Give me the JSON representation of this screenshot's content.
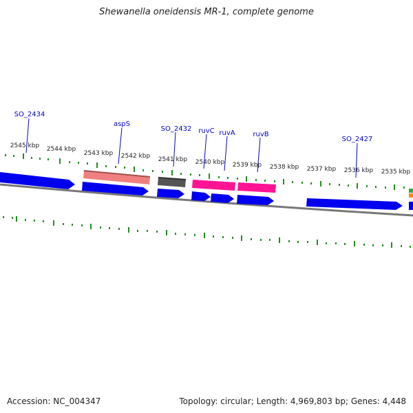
{
  "title": "Shewanella oneidensis MR-1, complete genome",
  "accession_label": "Accession:",
  "accession": "NC_004347",
  "topology_label": "Topology:",
  "topology": "circular",
  "length_label": "Length:",
  "length": "4,969,803 bp",
  "genes_label": "Genes:",
  "genes": "4,448",
  "ticks": [
    "2545 kbp",
    "2544 kbp",
    "2543 kbp",
    "2542 kbp",
    "2541 kbp",
    "2540 kbp",
    "2539 kbp",
    "2538 kbp",
    "2537 kbp",
    "2536 kbp",
    "2535 kbp"
  ],
  "gene_labels": [
    "SO_2434",
    "aspS",
    "SO_2432",
    "ruvC",
    "ruvA",
    "ruvB",
    "SO_2427"
  ],
  "colors": {
    "cds": "#0000ee",
    "rrna_like": "#f08080",
    "gray_feature": "#555555",
    "magenta_feature": "#ff1493",
    "tick": "#228b22",
    "backbone": "#777777",
    "label": "#0000cc"
  }
}
